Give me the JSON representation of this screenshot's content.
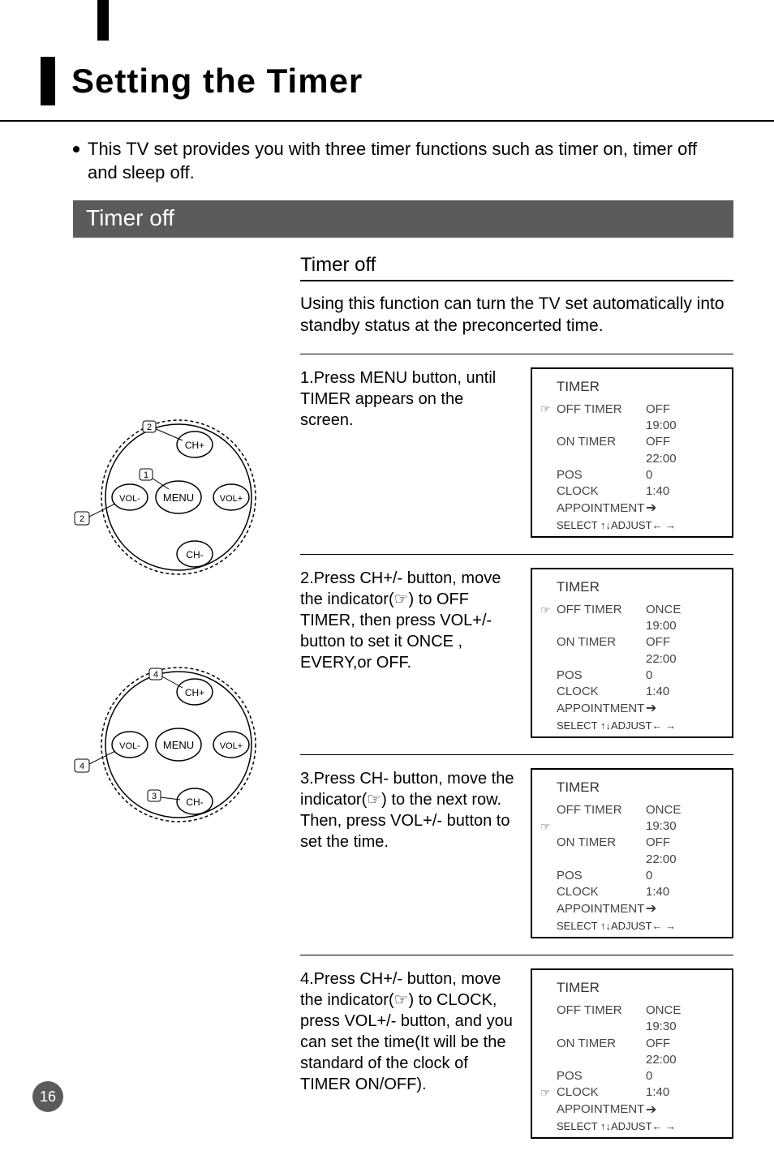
{
  "page": {
    "title": "Setting the Timer",
    "intro": "This TV set provides you with three timer functions such as timer on, timer off and sleep off.",
    "section_banner": "Timer off",
    "sub_title": "Timer off",
    "sub_desc": "Using this function can turn the TV set automatically into standby status at the preconcerted time.",
    "page_number": "16"
  },
  "colors": {
    "banner_bg": "#5b5b5b",
    "osd_text": "#444444",
    "border": "#000000"
  },
  "remote": {
    "buttons": {
      "menu": "MENU",
      "ch_plus": "CH+",
      "ch_minus": "CH-",
      "vol_plus": "VOL+",
      "vol_minus": "VOL-"
    },
    "top": {
      "callouts": [
        "1",
        "2",
        "2"
      ]
    },
    "bottom": {
      "callouts": [
        "3",
        "4",
        "4"
      ]
    }
  },
  "steps": [
    {
      "text": "1.Press MENU button, until TIMER appears on the screen.",
      "osd": {
        "title": "TIMER",
        "indicator_row": 0,
        "rows": [
          {
            "label": "OFF TIMER",
            "value": "OFF"
          },
          {
            "label": "",
            "value": "19:00"
          },
          {
            "label": "ON TIMER",
            "value": "OFF"
          },
          {
            "label": "",
            "value": "22:00"
          },
          {
            "label": "POS",
            "value": "0"
          },
          {
            "label": "CLOCK",
            "value": "1:40"
          },
          {
            "label": "APPOINTMENT",
            "value": "",
            "arrow": true
          }
        ],
        "footer": "SELECT ↑↓ADJUST← →"
      }
    },
    {
      "text": "2.Press CH+/- button, move the indicator(☞) to OFF TIMER, then press VOL+/- button to set it ONCE , EVERY,or OFF.",
      "osd": {
        "title": "TIMER",
        "indicator_row": 0,
        "rows": [
          {
            "label": "OFF TIMER",
            "value": "ONCE"
          },
          {
            "label": "",
            "value": "19:00"
          },
          {
            "label": "ON TIMER",
            "value": "OFF"
          },
          {
            "label": "",
            "value": "22:00"
          },
          {
            "label": "POS",
            "value": "0"
          },
          {
            "label": "CLOCK",
            "value": "1:40"
          },
          {
            "label": "APPOINTMENT",
            "value": "",
            "arrow": true
          }
        ],
        "footer": "SELECT ↑↓ADJUST← →"
      }
    },
    {
      "text": "3.Press CH- button, move the indicator(☞) to the next row. Then, press VOL+/- button to set the time.",
      "osd": {
        "title": "TIMER",
        "indicator_row": 1,
        "rows": [
          {
            "label": "OFF TIMER",
            "value": "ONCE"
          },
          {
            "label": "",
            "value": "19:30"
          },
          {
            "label": "ON TIMER",
            "value": "OFF"
          },
          {
            "label": "",
            "value": "22:00"
          },
          {
            "label": "POS",
            "value": "0"
          },
          {
            "label": "CLOCK",
            "value": "1:40"
          },
          {
            "label": "APPOINTMENT",
            "value": "",
            "arrow": true
          }
        ],
        "footer": "SELECT ↑↓ADJUST← →"
      }
    },
    {
      "text": "4.Press CH+/- button, move the indicator(☞) to CLOCK, press VOL+/- button, and you can set the time(It will be the standard of the clock of TIMER ON/OFF).",
      "osd": {
        "title": "TIMER",
        "indicator_row": 5,
        "rows": [
          {
            "label": "OFF TIMER",
            "value": "ONCE"
          },
          {
            "label": "",
            "value": "19:30"
          },
          {
            "label": "ON TIMER",
            "value": "OFF"
          },
          {
            "label": "",
            "value": "22:00"
          },
          {
            "label": "POS",
            "value": "0"
          },
          {
            "label": "CLOCK",
            "value": "1:40"
          },
          {
            "label": "APPOINTMENT",
            "value": "",
            "arrow": true
          }
        ],
        "footer": "SELECT ↑↓ADJUST← →"
      }
    }
  ]
}
